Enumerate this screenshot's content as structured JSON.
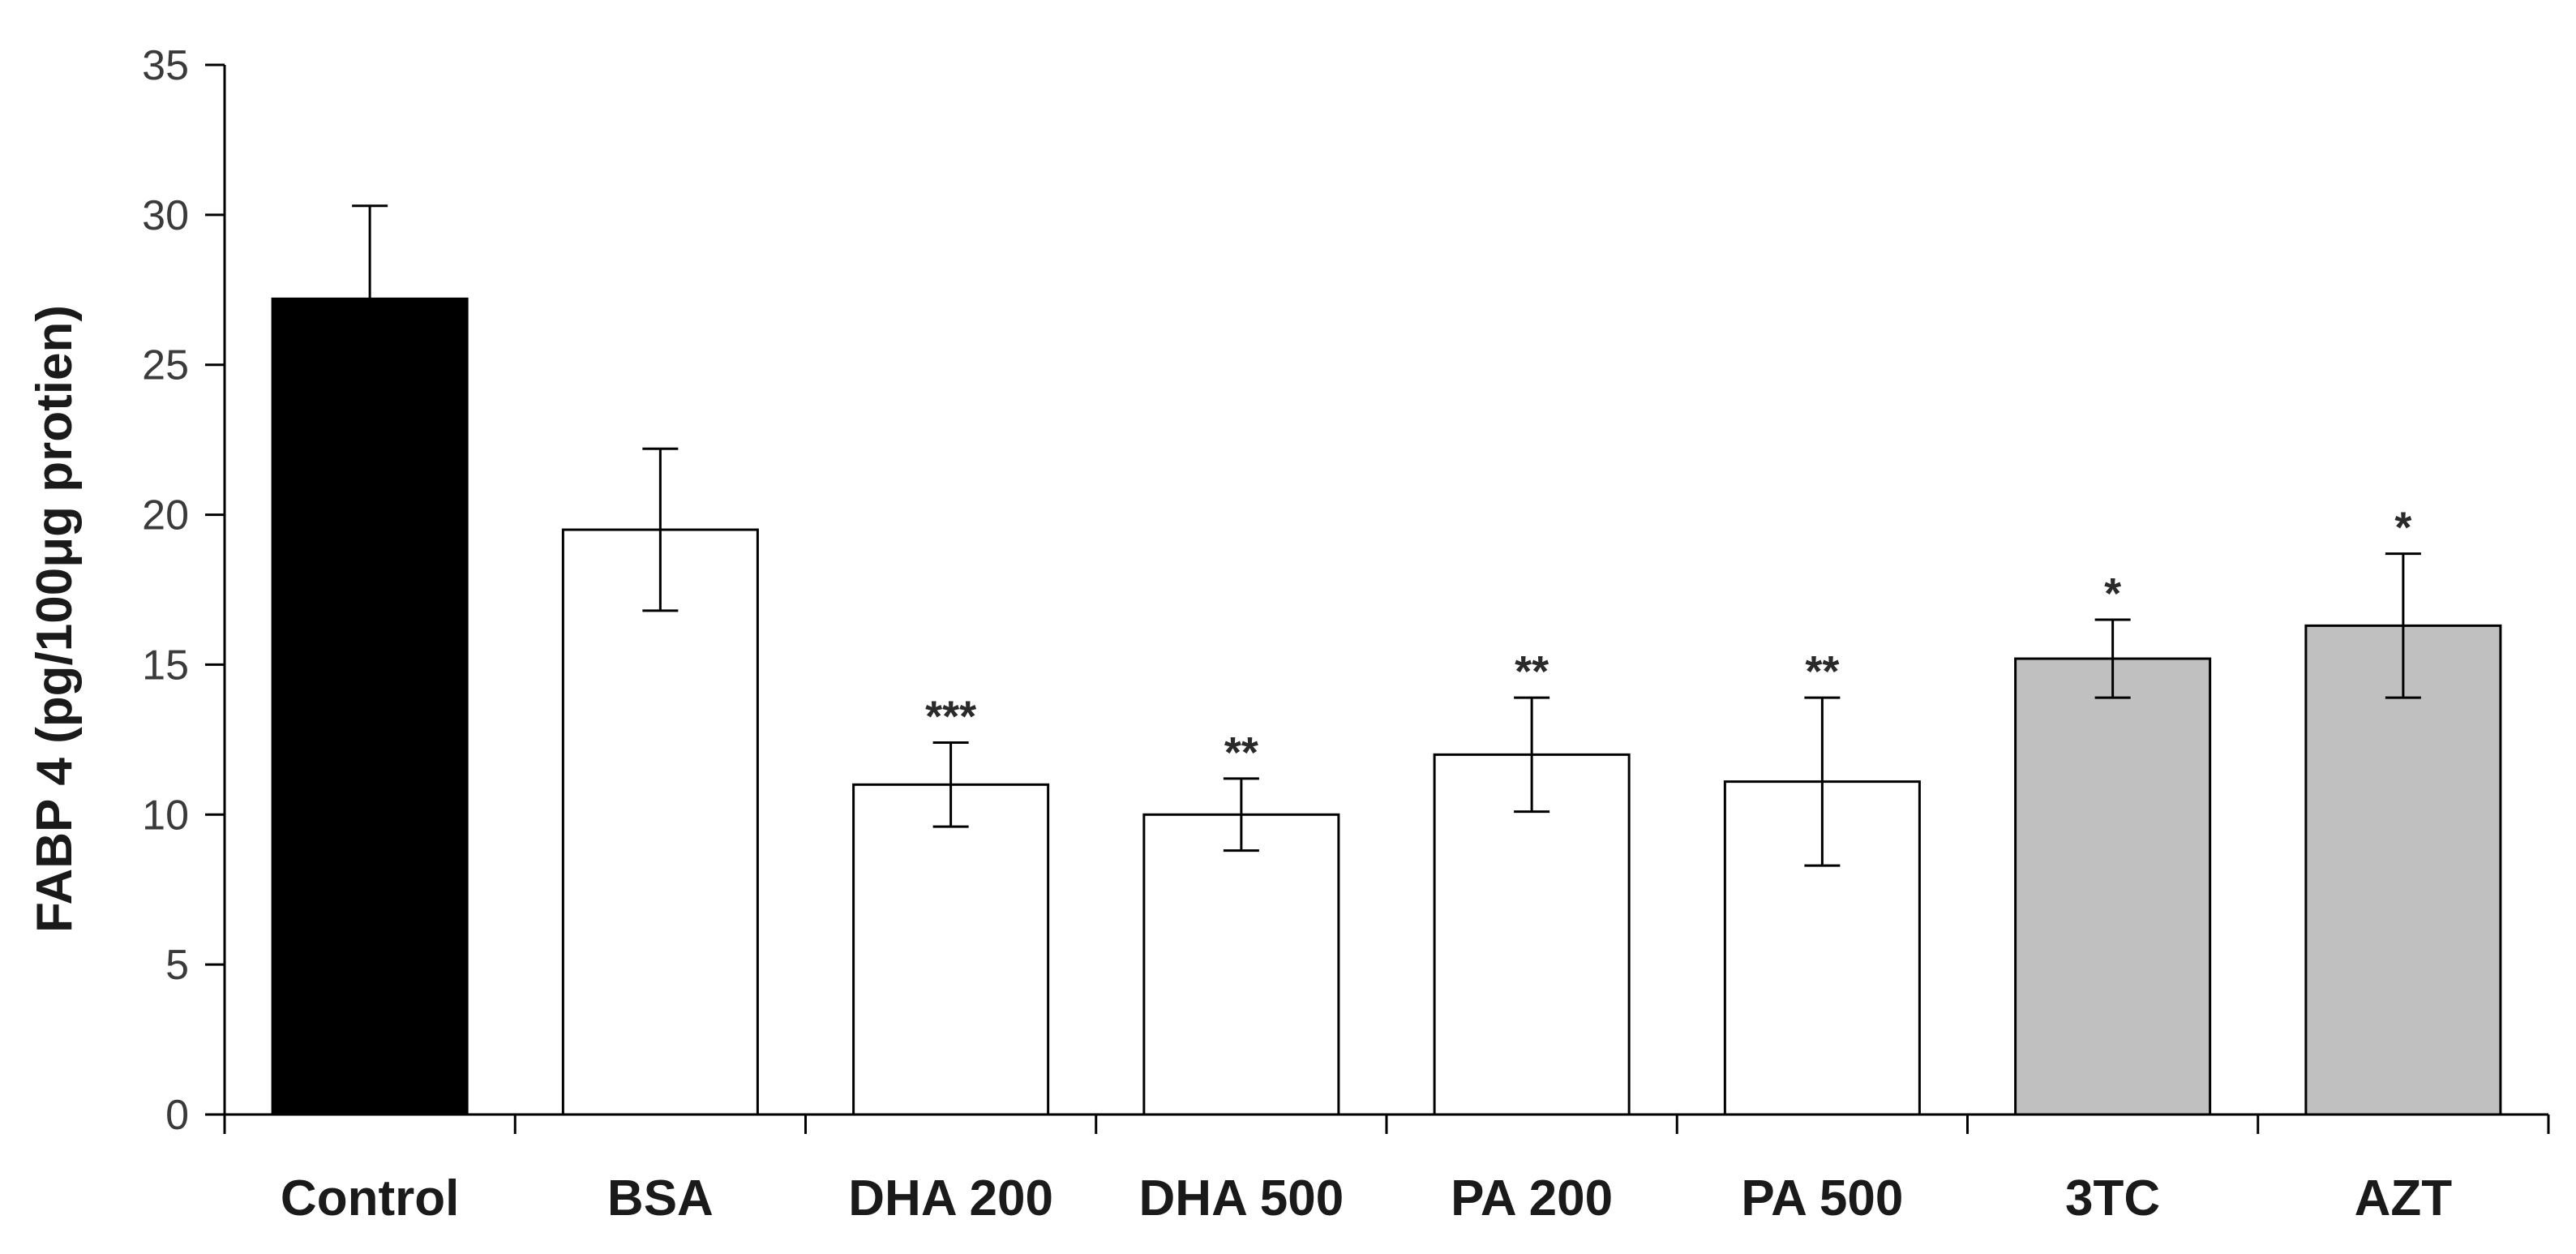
{
  "chart_data": {
    "type": "bar",
    "title": "",
    "xlabel": "",
    "ylabel": "FABP 4 (pg/100μg protien)",
    "ylim": [
      0,
      35
    ],
    "yticks": [
      0,
      5,
      10,
      15,
      20,
      25,
      30,
      35
    ],
    "grid": false,
    "categories": [
      "Control",
      "BSA",
      "DHA 200",
      "DHA 500",
      "PA 200",
      "PA 500",
      "3TC",
      "AZT"
    ],
    "values": [
      27.2,
      19.5,
      11.0,
      10.0,
      12.0,
      11.1,
      15.2,
      16.3
    ],
    "errors": [
      3.1,
      2.7,
      1.4,
      1.2,
      1.9,
      2.8,
      1.3,
      2.4
    ],
    "significance": [
      "",
      "",
      "***",
      "**",
      "**",
      "**",
      "*",
      "*"
    ],
    "bar_colors": [
      "#000000",
      "#ffffff",
      "#ffffff",
      "#ffffff",
      "#ffffff",
      "#ffffff",
      "#c0c0c0",
      "#c0c0c0"
    ]
  }
}
